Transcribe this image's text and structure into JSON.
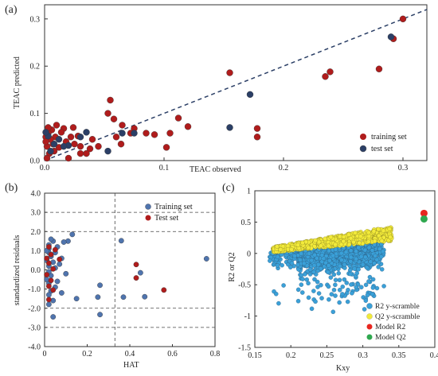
{
  "chart_data": [
    {
      "panel_label": "(a)",
      "type": "scatter",
      "xlabel": "TEAC observed",
      "ylabel": "TEAC predicted",
      "xlim": [
        0,
        0.32
      ],
      "ylim": [
        0,
        0.33
      ],
      "xticks": [
        0,
        0.1,
        0.2,
        0.3
      ],
      "xtick_labels": [
        "0.0",
        "0.1",
        "0.2",
        "0.3"
      ],
      "yticks": [
        0,
        0.1,
        0.2,
        0.3
      ],
      "ytick_labels": [
        "0.0",
        "0.1",
        "0.2",
        "0.3"
      ],
      "grid": false,
      "legend_position": "bottom-right",
      "reference_line": "y = x (dashed)",
      "series": [
        {
          "name": "training set",
          "color": "#b01c1c",
          "points": [
            [
              0.3,
              0.3
            ],
            [
              0.292,
              0.258
            ],
            [
              0.28,
              0.194
            ],
            [
              0.235,
              0.178
            ],
            [
              0.239,
              0.188
            ],
            [
              0.155,
              0.186
            ],
            [
              0.178,
              0.068
            ],
            [
              0.178,
              0.05
            ],
            [
              0.112,
              0.09
            ],
            [
              0.12,
              0.072
            ],
            [
              0.105,
              0.058
            ],
            [
              0.102,
              0.028
            ],
            [
              0.092,
              0.055
            ],
            [
              0.075,
              0.068
            ],
            [
              0.072,
              0.058
            ],
            [
              0.065,
              0.075
            ],
            [
              0.055,
              0.128
            ],
            [
              0.053,
              0.1
            ],
            [
              0.058,
              0.088
            ],
            [
              0.06,
              0.05
            ],
            [
              0.064,
              0.035
            ],
            [
              0.045,
              0.03
            ],
            [
              0.04,
              0.045
            ],
            [
              0.038,
              0.025
            ],
            [
              0.035,
              0.015
            ],
            [
              0.03,
              0.03
            ],
            [
              0.028,
              0.052
            ],
            [
              0.024,
              0.07
            ],
            [
              0.022,
              0.05
            ],
            [
              0.02,
              0.005
            ],
            [
              0.018,
              0.04
            ],
            [
              0.016,
              0.068
            ],
            [
              0.014,
              0.06
            ],
            [
              0.012,
              0.028
            ],
            [
              0.01,
              0.075
            ],
            [
              0.009,
              0.05
            ],
            [
              0.008,
              0.02
            ],
            [
              0.007,
              0.035
            ],
            [
              0.006,
              0.065
            ],
            [
              0.005,
              0.045
            ],
            [
              0.004,
              0.015
            ],
            [
              0.003,
              0.058
            ],
            [
              0.003,
              0.07
            ],
            [
              0.002,
              0.03
            ],
            [
              0.002,
              0.005
            ],
            [
              0.001,
              0.05
            ],
            [
              0.001,
              0.04
            ],
            [
              0.085,
              0.058
            ],
            [
              0.03,
              0.015
            ],
            [
              0.025,
              0.035
            ]
          ]
        },
        {
          "name": "test set",
          "color": "#2b3f66",
          "points": [
            [
              0.29,
              0.262
            ],
            [
              0.155,
              0.07
            ],
            [
              0.172,
              0.14
            ],
            [
              0.075,
              0.058
            ],
            [
              0.065,
              0.058
            ],
            [
              0.053,
              0.02
            ],
            [
              0.035,
              0.06
            ],
            [
              0.03,
              0.05
            ],
            [
              0.02,
              0.032
            ],
            [
              0.016,
              0.03
            ],
            [
              0.012,
              0.045
            ],
            [
              0.008,
              0.035
            ],
            [
              0.005,
              0.02
            ],
            [
              0.003,
              0.052
            ],
            [
              0.001,
              0.06
            ]
          ]
        }
      ]
    },
    {
      "panel_label": "(b)",
      "type": "scatter",
      "xlabel": "HAT",
      "ylabel": "standardized residuals",
      "xlim": [
        0,
        0.8
      ],
      "ylim": [
        -4.0,
        4.0
      ],
      "xticks": [
        0,
        0.2,
        0.4,
        0.6,
        0.8
      ],
      "xtick_labels": [
        "0",
        "0.2",
        "0.4",
        "0.6",
        "0.8"
      ],
      "yticks": [
        -4,
        -3,
        -2,
        -1,
        0,
        1,
        2,
        3,
        4
      ],
      "ytick_labels": [
        "-4.0",
        "-3.0",
        "-2.0",
        "-1.0",
        "0.0",
        "1.0",
        "2.0",
        "3.0",
        "4.0"
      ],
      "grid": false,
      "legend_position": "top-right",
      "reference_lines": {
        "horizontal": [
          3.0,
          2.0,
          -2.0,
          -3.0
        ],
        "vertical": [
          0.33
        ]
      },
      "series": [
        {
          "name": "Training set",
          "color": "#4f74ae",
          "points": [
            [
              0.76,
              0.58
            ],
            [
              0.47,
              -1.4
            ],
            [
              0.45,
              -0.15
            ],
            [
              0.36,
              1.52
            ],
            [
              0.37,
              -1.42
            ],
            [
              0.26,
              -0.8
            ],
            [
              0.25,
              -1.42
            ],
            [
              0.26,
              -2.33
            ],
            [
              0.15,
              -1.5
            ],
            [
              0.13,
              1.85
            ],
            [
              0.11,
              1.5
            ],
            [
              0.1,
              -0.2
            ],
            [
              0.09,
              1.45
            ],
            [
              0.08,
              0.6
            ],
            [
              0.08,
              -1.2
            ],
            [
              0.07,
              0.3
            ],
            [
              0.06,
              1.2
            ],
            [
              0.06,
              -0.6
            ],
            [
              0.05,
              0.9
            ],
            [
              0.05,
              -0.9
            ],
            [
              0.05,
              0.1
            ],
            [
              0.04,
              1.5
            ],
            [
              0.04,
              -1.6
            ],
            [
              0.04,
              0.4
            ],
            [
              0.04,
              -2.45
            ],
            [
              0.03,
              1.6
            ],
            [
              0.03,
              -0.3
            ],
            [
              0.03,
              0.7
            ],
            [
              0.03,
              -1.1
            ],
            [
              0.02,
              1.1
            ],
            [
              0.02,
              -1.8
            ],
            [
              0.02,
              0.2
            ],
            [
              0.02,
              -0.1
            ],
            [
              0.02,
              0.9
            ],
            [
              0.02,
              -0.7
            ],
            [
              0.02,
              1.3
            ],
            [
              0.02,
              -1.3
            ],
            [
              0.01,
              0.5
            ],
            [
              0.01,
              -0.5
            ],
            [
              0.01,
              1.0
            ]
          ]
        },
        {
          "name": "Test set",
          "color": "#b01c1c",
          "points": [
            [
              0.56,
              -1.05
            ],
            [
              0.43,
              0.28
            ],
            [
              0.43,
              -0.42
            ],
            [
              0.07,
              0.55
            ],
            [
              0.05,
              1.05
            ],
            [
              0.04,
              0.05
            ],
            [
              0.04,
              -1.05
            ],
            [
              0.03,
              0.8
            ],
            [
              0.03,
              -0.55
            ],
            [
              0.02,
              0.35
            ],
            [
              0.02,
              -1.55
            ],
            [
              0.02,
              1.2
            ],
            [
              0.01,
              -0.25
            ],
            [
              0.01,
              0.6
            ],
            [
              0.02,
              -0.85
            ]
          ]
        }
      ]
    },
    {
      "panel_label": "(c)",
      "type": "scatter",
      "xlabel": "Kxy",
      "ylabel": "R2 or Q2",
      "xlim": [
        0.15,
        0.4
      ],
      "ylim": [
        -1.5,
        1.0
      ],
      "xticks": [
        0.15,
        0.2,
        0.25,
        0.3,
        0.35,
        0.4
      ],
      "xtick_labels": [
        "0.15",
        "0.2",
        "0.25",
        "0.3",
        "0.35",
        "0.4"
      ],
      "yticks": [
        -1.5,
        -1,
        -0.5,
        0,
        0.5,
        1
      ],
      "ytick_labels": [
        "-1.5",
        "-1",
        "-0.5",
        "0",
        "0.5",
        "1"
      ],
      "grid": false,
      "legend_position": "bottom-right",
      "series": [
        {
          "name": "R2 y-scramble",
          "color": "#3aa0d8",
          "description_points": "cloud of several hundred permutation results, Kxy 0.17–0.33, values mostly between -0.9 and 0.2"
        },
        {
          "name": "Q2 y-scramble",
          "color": "#f2ea3a",
          "description_points": "band of permutation results, Kxy 0.17–0.34, values roughly 0.0 to 0.45"
        },
        {
          "name": "Model R2",
          "color": "#e8261f",
          "points": [
            [
              0.385,
              0.64
            ]
          ]
        },
        {
          "name": "Model Q2",
          "color": "#2fa84f",
          "points": [
            [
              0.385,
              0.55
            ]
          ]
        }
      ]
    }
  ]
}
